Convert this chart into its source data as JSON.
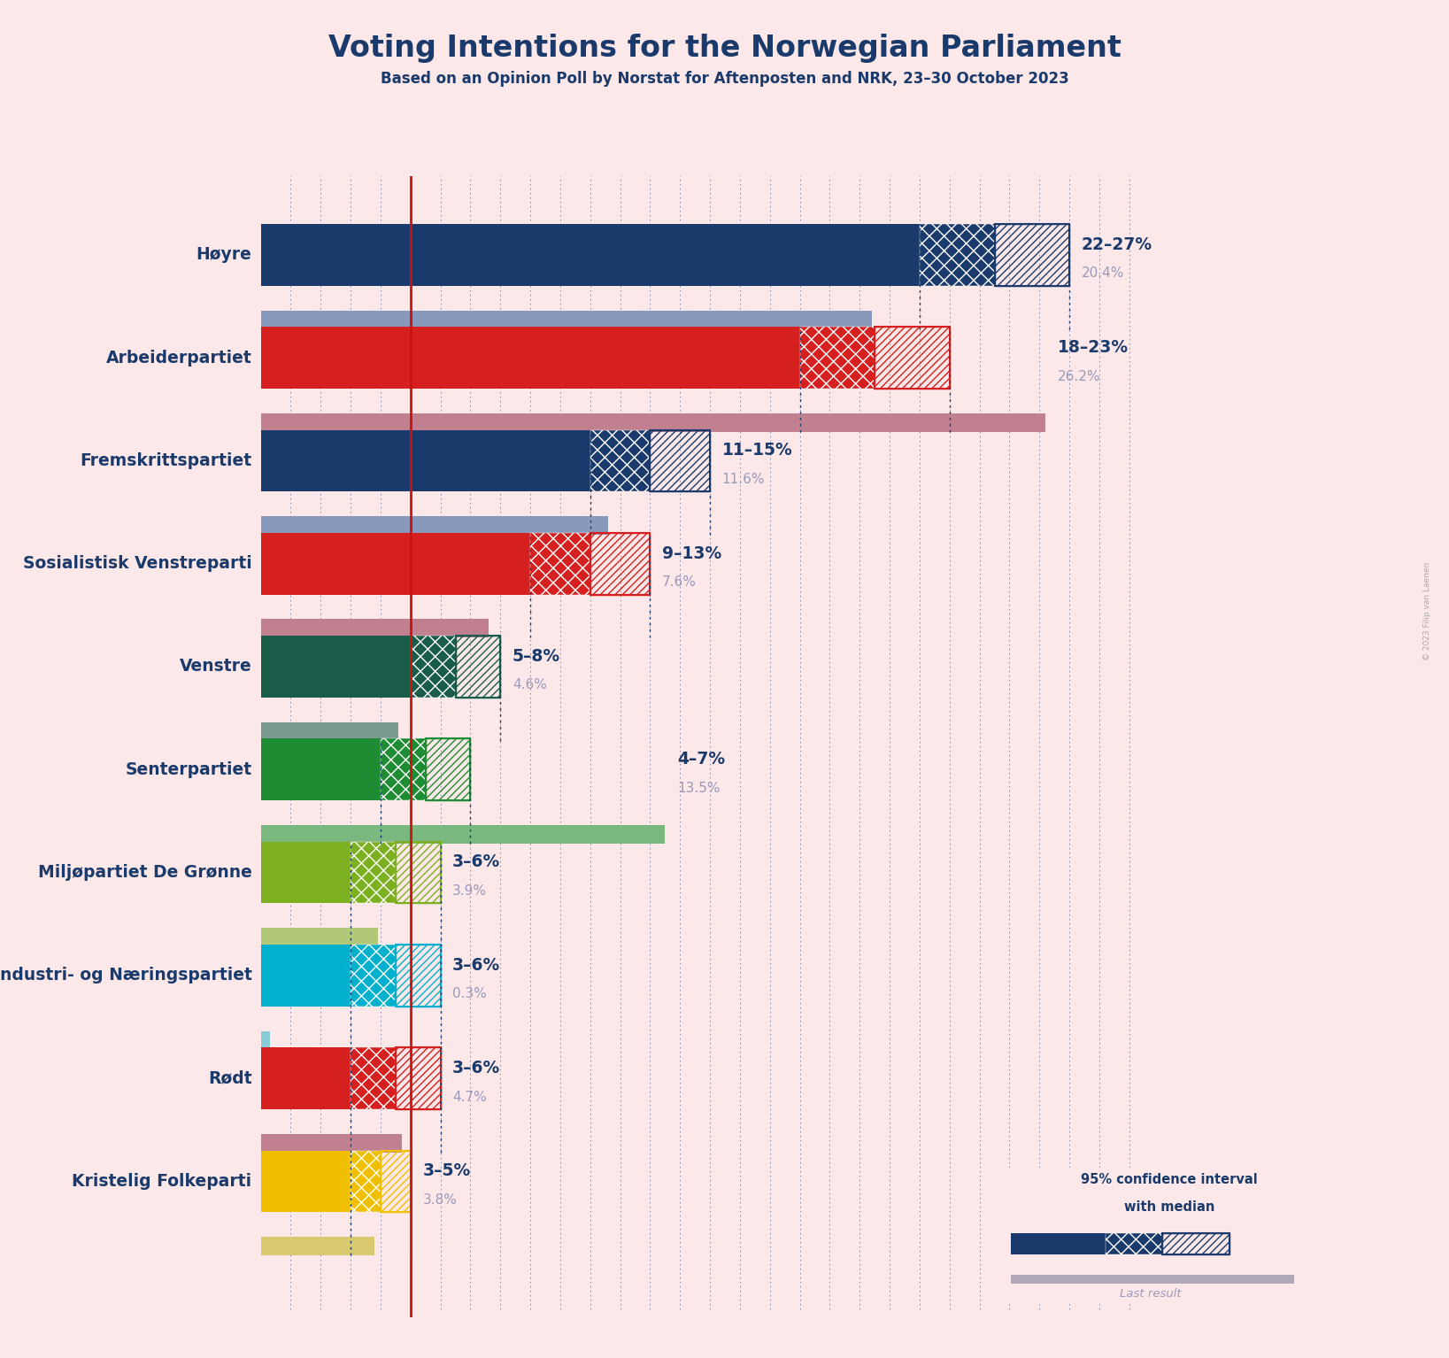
{
  "title": "Voting Intentions for the Norwegian Parliament",
  "subtitle": "Based on an Opinion Poll by Norstat for Aftenposten and NRK, 23–30 October 2023",
  "copyright": "© 2023 Filip van Laenen",
  "background_color": "#fce8e8",
  "parties": [
    {
      "name": "Høyre",
      "median": 24.5,
      "ci_low": 22,
      "ci_high": 27,
      "last_result": 20.4,
      "color": "#1a3a6b",
      "last_color": "#8899bb",
      "label": "22–27%",
      "label2": "20.4%"
    },
    {
      "name": "Arbeiderpartiet",
      "median": 20.5,
      "ci_low": 18,
      "ci_high": 23,
      "last_result": 26.2,
      "color": "#d62020",
      "last_color": "#c08090",
      "label": "18–23%",
      "label2": "26.2%"
    },
    {
      "name": "Fremskrittspartiet",
      "median": 13.0,
      "ci_low": 11,
      "ci_high": 15,
      "last_result": 11.6,
      "color": "#1a3a6b",
      "last_color": "#8899bb",
      "label": "11–15%",
      "label2": "11.6%"
    },
    {
      "name": "Sosialistisk Venstreparti",
      "median": 11.0,
      "ci_low": 9,
      "ci_high": 13,
      "last_result": 7.6,
      "color": "#d62020",
      "last_color": "#c08090",
      "label": "9–13%",
      "label2": "7.6%"
    },
    {
      "name": "Venstre",
      "median": 6.5,
      "ci_low": 5,
      "ci_high": 8,
      "last_result": 4.6,
      "color": "#1a5c4a",
      "last_color": "#7a9990",
      "label": "5–8%",
      "label2": "4.6%"
    },
    {
      "name": "Senterpartiet",
      "median": 5.5,
      "ci_low": 4,
      "ci_high": 7,
      "last_result": 13.5,
      "color": "#1e8c32",
      "last_color": "#7ab880",
      "label": "4–7%",
      "label2": "13.5%"
    },
    {
      "name": "Miljøpartiet De Grønne",
      "median": 4.5,
      "ci_low": 3,
      "ci_high": 6,
      "last_result": 3.9,
      "color": "#7db020",
      "last_color": "#b0c878",
      "label": "3–6%",
      "label2": "3.9%"
    },
    {
      "name": "Industri- og Næringspartiet",
      "median": 4.5,
      "ci_low": 3,
      "ci_high": 6,
      "last_result": 0.3,
      "color": "#00b0cc",
      "last_color": "#88ccd8",
      "label": "3–6%",
      "label2": "0.3%"
    },
    {
      "name": "Rødt",
      "median": 4.5,
      "ci_low": 3,
      "ci_high": 6,
      "last_result": 4.7,
      "color": "#d62020",
      "last_color": "#c08090",
      "label": "3–6%",
      "label2": "4.7%"
    },
    {
      "name": "Kristelig Folkeparti",
      "median": 4.0,
      "ci_low": 3,
      "ci_high": 5,
      "last_result": 3.8,
      "color": "#f0c000",
      "last_color": "#d8c870",
      "label": "3–5%",
      "label2": "3.8%"
    }
  ],
  "xlim": [
    0,
    30
  ],
  "red_line_x": 5.0,
  "dotted_line_color": "#1a3a6b",
  "text_color": "#1a3a6b",
  "label2_color": "#9999bb"
}
